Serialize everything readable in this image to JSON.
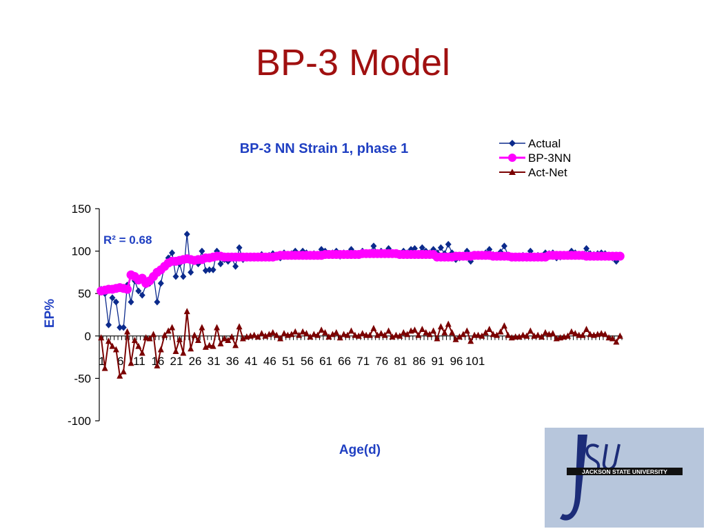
{
  "slide": {
    "title": "BP-3 Model"
  },
  "logo": {
    "letters": "JSU",
    "text": "JACKSON STATE UNIVERSITY"
  },
  "colors": {
    "title": "#a01010",
    "actual": "#0b2a8c",
    "nn": "#ff00ff",
    "diff": "#7a0000",
    "chart_title": "#1f3fc2"
  },
  "chart_data": {
    "type": "line",
    "title": "BP-3 NN Strain 1, phase 1",
    "xlabel": "Age(d)",
    "ylabel": "EP%",
    "ylim": [
      -100,
      150
    ],
    "yticks": [
      "-100",
      "-50",
      "0",
      "50",
      "100",
      "150"
    ],
    "x_tick_labels": [
      "1",
      "6",
      "11",
      "16",
      "21",
      "26",
      "31",
      "36",
      "41",
      "46",
      "51",
      "56",
      "61",
      "66",
      "71",
      "76",
      "81",
      "86",
      "91",
      "96",
      "101"
    ],
    "legend_position": "top-right",
    "grid": false,
    "annotation": "R² = 0.68",
    "series": [
      {
        "name": "Actual",
        "marker": "diamond",
        "values": [
          55,
          50,
          13,
          45,
          40,
          10,
          10,
          60,
          40,
          65,
          53,
          48,
          60,
          62,
          72,
          40,
          62,
          83,
          92,
          98,
          70,
          85,
          70,
          120,
          75,
          90,
          85,
          100,
          77,
          78,
          78,
          100,
          85,
          90,
          88,
          92,
          82,
          104,
          90,
          92,
          93,
          94,
          92,
          96,
          93,
          95,
          97,
          94,
          92,
          98,
          96,
          97,
          100,
          96,
          100,
          98,
          94,
          97,
          96,
          102,
          100,
          95,
          98,
          100,
          94,
          98,
          97,
          102,
          97,
          96,
          100,
          98,
          98,
          106,
          98,
          100,
          98,
          103,
          96,
          98,
          96,
          100,
          98,
          102,
          103,
          97,
          104,
          100,
          98,
          102,
          98,
          104,
          97,
          108,
          98,
          90,
          92,
          95,
          100,
          88,
          96,
          95,
          94,
          98,
          102,
          96,
          95,
          99,
          106,
          95,
          92,
          93,
          93,
          95,
          94,
          100,
          94,
          95,
          93,
          98,
          97,
          98,
          92,
          93,
          94,
          95,
          100,
          98,
          96,
          96,
          103,
          97,
          96,
          97,
          98,
          97,
          93,
          92,
          88,
          94
        ]
      },
      {
        "name": "BP-3NN",
        "marker": "circle",
        "values": [
          53,
          54,
          55,
          55,
          56,
          57,
          56,
          55,
          72,
          70,
          66,
          68,
          62,
          65,
          70,
          75,
          78,
          82,
          86,
          88,
          88,
          89,
          90,
          91,
          90,
          89,
          90,
          90,
          92,
          92,
          93,
          94,
          94,
          93,
          93,
          93,
          93,
          93,
          93,
          93,
          93,
          93,
          93,
          93,
          93,
          93,
          93,
          94,
          95,
          95,
          95,
          95,
          95,
          95,
          95,
          95,
          95,
          95,
          95,
          95,
          96,
          96,
          96,
          96,
          96,
          96,
          96,
          96,
          96,
          96,
          97,
          97,
          97,
          97,
          97,
          97,
          97,
          97,
          97,
          97,
          96,
          96,
          96,
          96,
          96,
          96,
          96,
          96,
          96,
          96,
          93,
          93,
          93,
          93,
          93,
          94,
          94,
          94,
          94,
          94,
          95,
          95,
          95,
          95,
          95,
          94,
          94,
          94,
          94,
          94,
          93,
          93,
          93,
          93,
          93,
          93,
          93,
          93,
          93,
          93,
          95,
          95,
          95,
          95,
          95,
          95,
          95,
          95,
          95,
          95,
          94,
          94,
          94,
          94,
          94,
          94,
          94,
          94,
          94,
          94
        ]
      },
      {
        "name": "Act-Net",
        "marker": "triangle",
        "values": [
          -2,
          -38,
          -6,
          -12,
          -16,
          -47,
          -42,
          5,
          -32,
          -5,
          -12,
          -20,
          -2,
          -3,
          2,
          -35,
          -16,
          1,
          6,
          10,
          -18,
          -4,
          -20,
          29,
          -15,
          1,
          -5,
          10,
          -13,
          -11,
          -12,
          10,
          -9,
          -3,
          -5,
          -1,
          -11,
          11,
          -3,
          -1,
          0,
          1,
          -1,
          3,
          0,
          2,
          4,
          1,
          -3,
          3,
          1,
          2,
          5,
          1,
          5,
          3,
          -1,
          2,
          1,
          7,
          4,
          -1,
          2,
          4,
          -2,
          2,
          1,
          6,
          1,
          0,
          3,
          1,
          1,
          9,
          1,
          3,
          1,
          6,
          -1,
          1,
          0,
          4,
          2,
          6,
          7,
          1,
          8,
          4,
          2,
          6,
          -3,
          11,
          4,
          14,
          4,
          -4,
          -1,
          2,
          6,
          -6,
          1,
          1,
          0,
          4,
          8,
          2,
          1,
          5,
          12,
          1,
          -2,
          -1,
          -1,
          1,
          0,
          6,
          0,
          1,
          -1,
          4,
          2,
          3,
          -3,
          -2,
          -1,
          0,
          5,
          3,
          1,
          1,
          8,
          2,
          1,
          2,
          3,
          2,
          -2,
          -3,
          -7,
          0
        ]
      }
    ]
  }
}
